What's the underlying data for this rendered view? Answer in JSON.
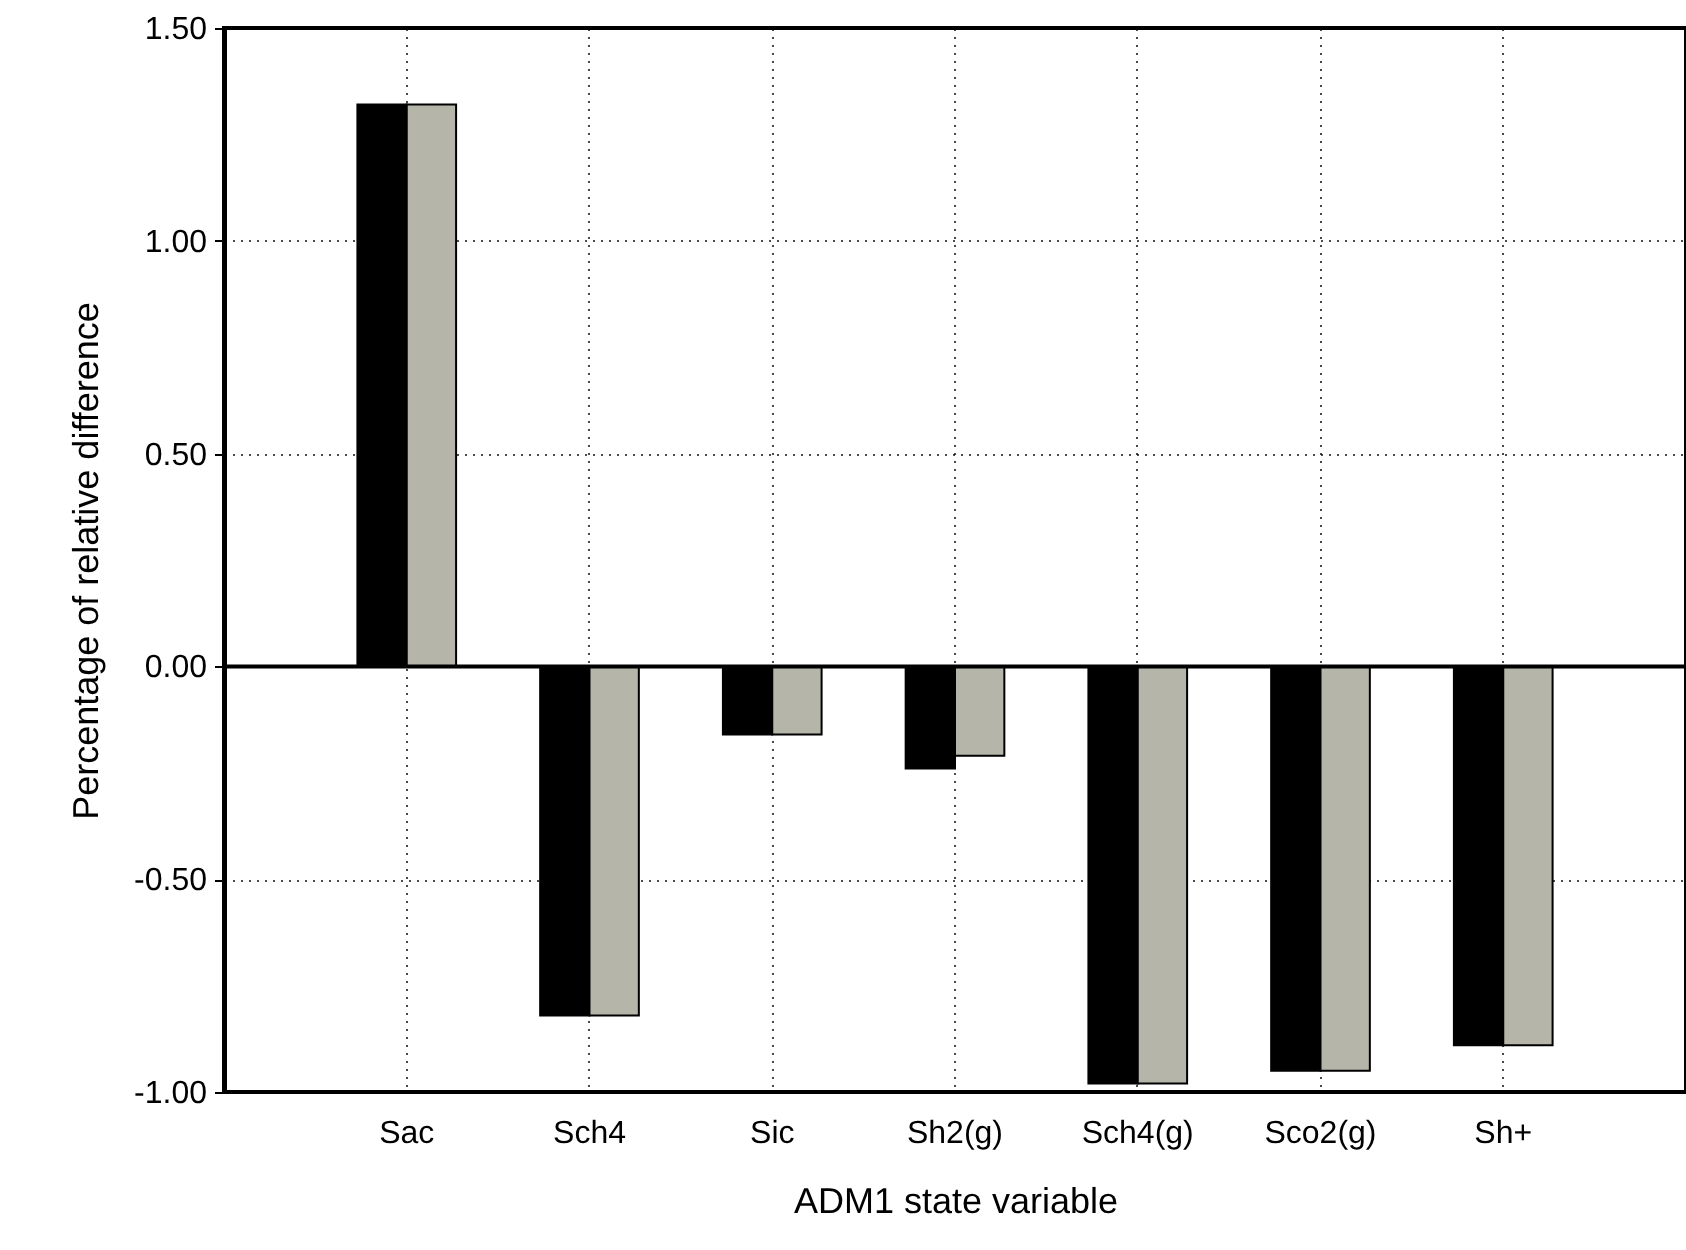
{
  "chart_data": {
    "type": "bar",
    "xlabel": "ADM1 state variable",
    "ylabel": "Percentage of relative difference",
    "categories": [
      "Sac",
      "Sch4",
      "Sic",
      "Sh2(g)",
      "Sch4(g)",
      "Sco2(g)",
      "Sh+"
    ],
    "series": [
      {
        "color": "#000000",
        "values": [
          1.32,
          -0.82,
          -0.16,
          -0.24,
          -0.98,
          -0.95,
          -0.89
        ]
      },
      {
        "color": "#b5b5a9",
        "values": [
          1.32,
          -0.82,
          -0.16,
          -0.21,
          -0.98,
          -0.95,
          -0.89
        ]
      }
    ],
    "ylim": [
      -1.0,
      1.5
    ],
    "yticks": [
      {
        "value": -1.0,
        "label": "-1.00"
      },
      {
        "value": -0.5,
        "label": "-0.50"
      },
      {
        "value": 0,
        "label": "0.00"
      },
      {
        "value": 0.5,
        "label": "0.50"
      },
      {
        "value": 1.0,
        "label": "1.00"
      },
      {
        "value": 1.5,
        "label": "1.50"
      }
    ],
    "grid": true,
    "ref_lines": [
      {
        "axis": "y",
        "value": 0
      }
    ]
  }
}
